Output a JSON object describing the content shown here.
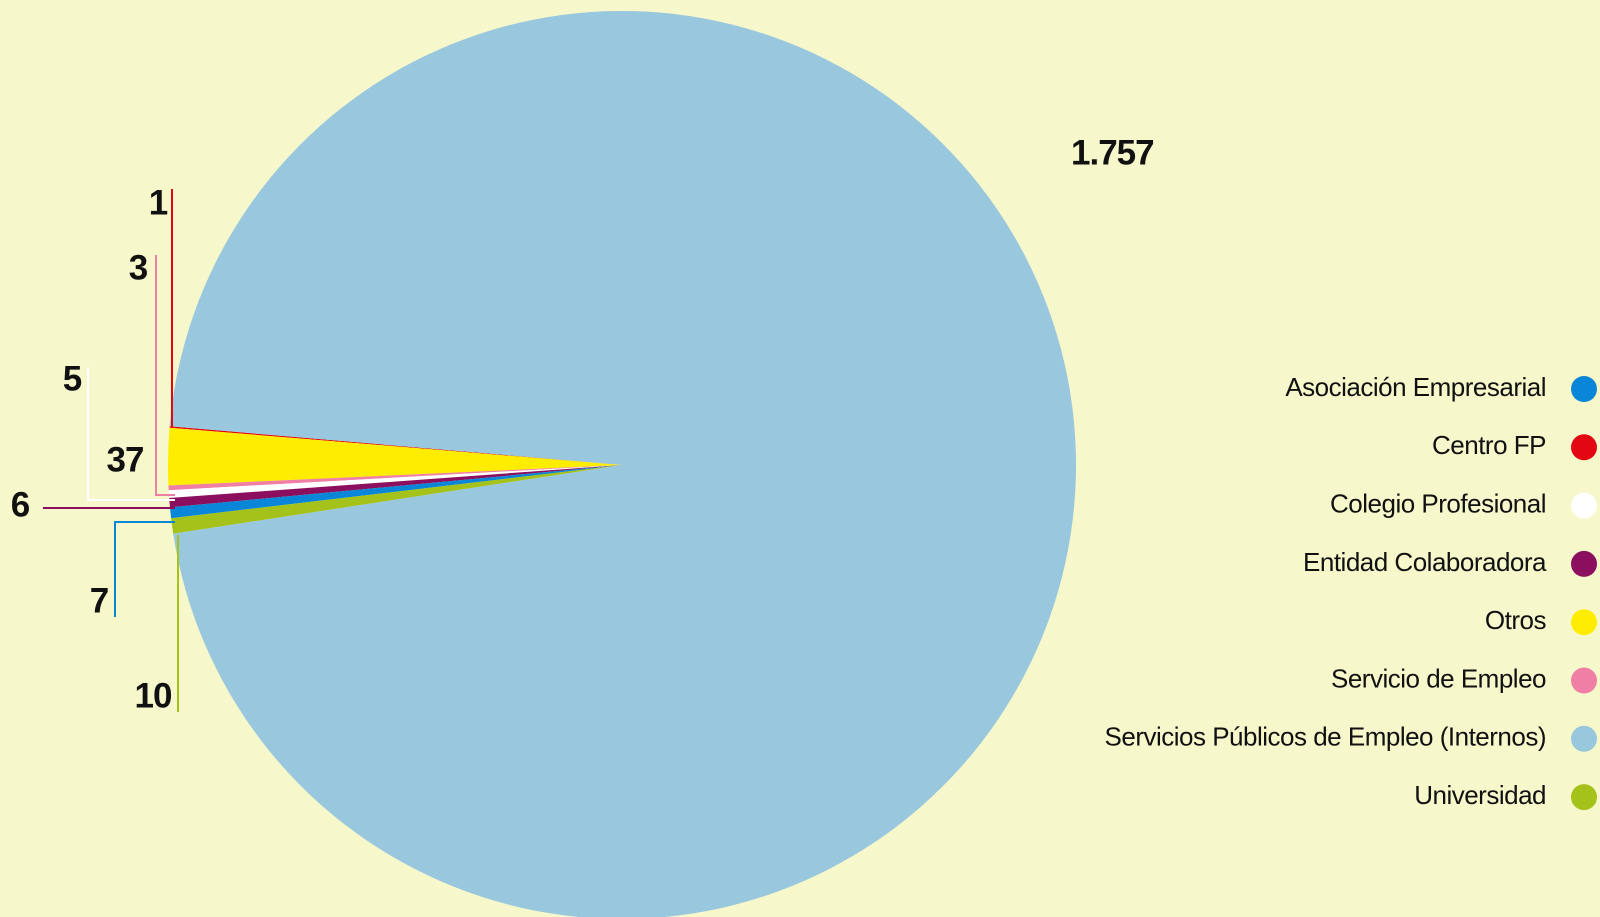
{
  "chart_data": {
    "type": "pie",
    "categories": [
      "Asociación Empresarial",
      "Centro FP",
      "Colegio Profesional",
      "Entidad Colaboradora",
      "Otros",
      "Servicio de Empleo",
      "Servicios Públicos de Empleo (Internos)",
      "Universidad"
    ],
    "values": [
      7,
      1,
      5,
      6,
      37,
      3,
      1757,
      10
    ],
    "value_labels": [
      "7",
      "1",
      "5",
      "6",
      "37",
      "3",
      "1.757",
      "10"
    ],
    "colors": [
      "#0a86d8",
      "#e30613",
      "#ffffff",
      "#8b0f5e",
      "#ffed00",
      "#f07fa6",
      "#99c7dd",
      "#a5c21a"
    ],
    "legend": "right"
  }
}
